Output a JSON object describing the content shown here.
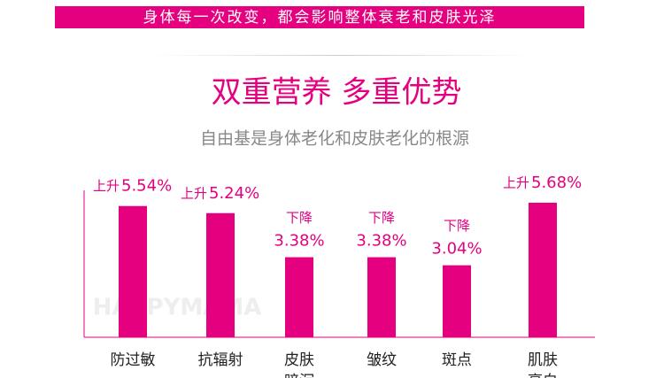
{
  "banner": "身体每一次改变，都会影响整体衰老和皮肤光泽",
  "chart_data": {
    "type": "bar",
    "title": "双重营养 多重优势",
    "subtitle": "自由基是身体老化和皮肤老化的根源",
    "watermark": "HAPPYMAMA",
    "categories": [
      "防过敏",
      "抗辐射",
      "皮肤暗沉",
      "皱纹",
      "斑点",
      "肌肤亮白"
    ],
    "changes": [
      "上升",
      "上升",
      "下降",
      "下降",
      "下降",
      "上升"
    ],
    "values": [
      5.54,
      5.24,
      3.38,
      3.38,
      3.04,
      5.68
    ],
    "value_labels": [
      "5.54%",
      "5.24%",
      "3.38%",
      "3.38%",
      "3.04%",
      "5.68%"
    ],
    "color": "#e4007f"
  }
}
